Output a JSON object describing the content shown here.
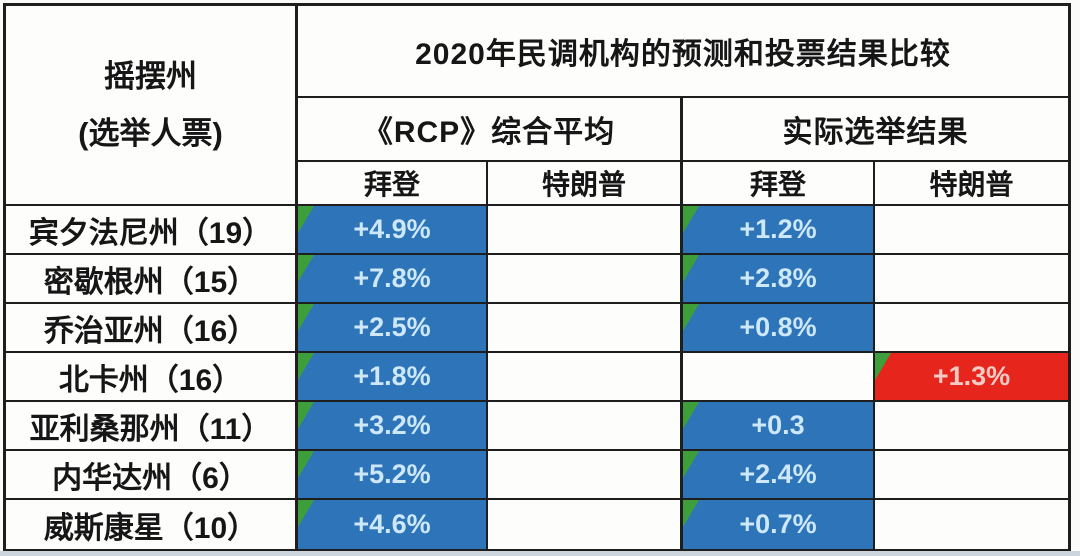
{
  "chart_data": {
    "type": "table",
    "title": "2020年民调机构的预测和投票结果比较",
    "corner_header": {
      "line1": "摇摆州",
      "line2": "(选举人票)"
    },
    "column_groups": [
      {
        "label": "《RCP》综合平均"
      },
      {
        "label": "实际选举结果"
      }
    ],
    "candidates": [
      "拜登",
      "特朗普",
      "拜登",
      "特朗普"
    ],
    "column_parties": [
      "biden",
      "trump",
      "biden",
      "trump"
    ],
    "rows": [
      {
        "state": "宾夕法尼州（19）",
        "values": [
          "+4.9%",
          "",
          "+1.2%",
          ""
        ]
      },
      {
        "state": "密歇根州（15）",
        "values": [
          "+7.8%",
          "",
          "+2.8%",
          ""
        ]
      },
      {
        "state": "乔治亚州（16）",
        "values": [
          "+2.5%",
          "",
          "+0.8%",
          ""
        ]
      },
      {
        "state": "北卡州（16）",
        "values": [
          "+1.8%",
          "",
          "",
          "+1.3%"
        ]
      },
      {
        "state": "亚利桑那州（11）",
        "values": [
          "+3.2%",
          "",
          "+0.3",
          ""
        ]
      },
      {
        "state": "内华达州（6）",
        "values": [
          "+5.2%",
          "",
          "+2.4%",
          ""
        ]
      },
      {
        "state": "威斯康星（10）",
        "values": [
          "+4.6%",
          "",
          "+0.7%",
          ""
        ]
      }
    ]
  },
  "colors": {
    "biden_blue": "#2e74b8",
    "trump_red": "#e6261c",
    "blue_value_text": "#cde8fa",
    "red_value_text": "#f3cbc5",
    "flag_green": "#3f9e3c",
    "border_dark": "#1e1e1e"
  }
}
